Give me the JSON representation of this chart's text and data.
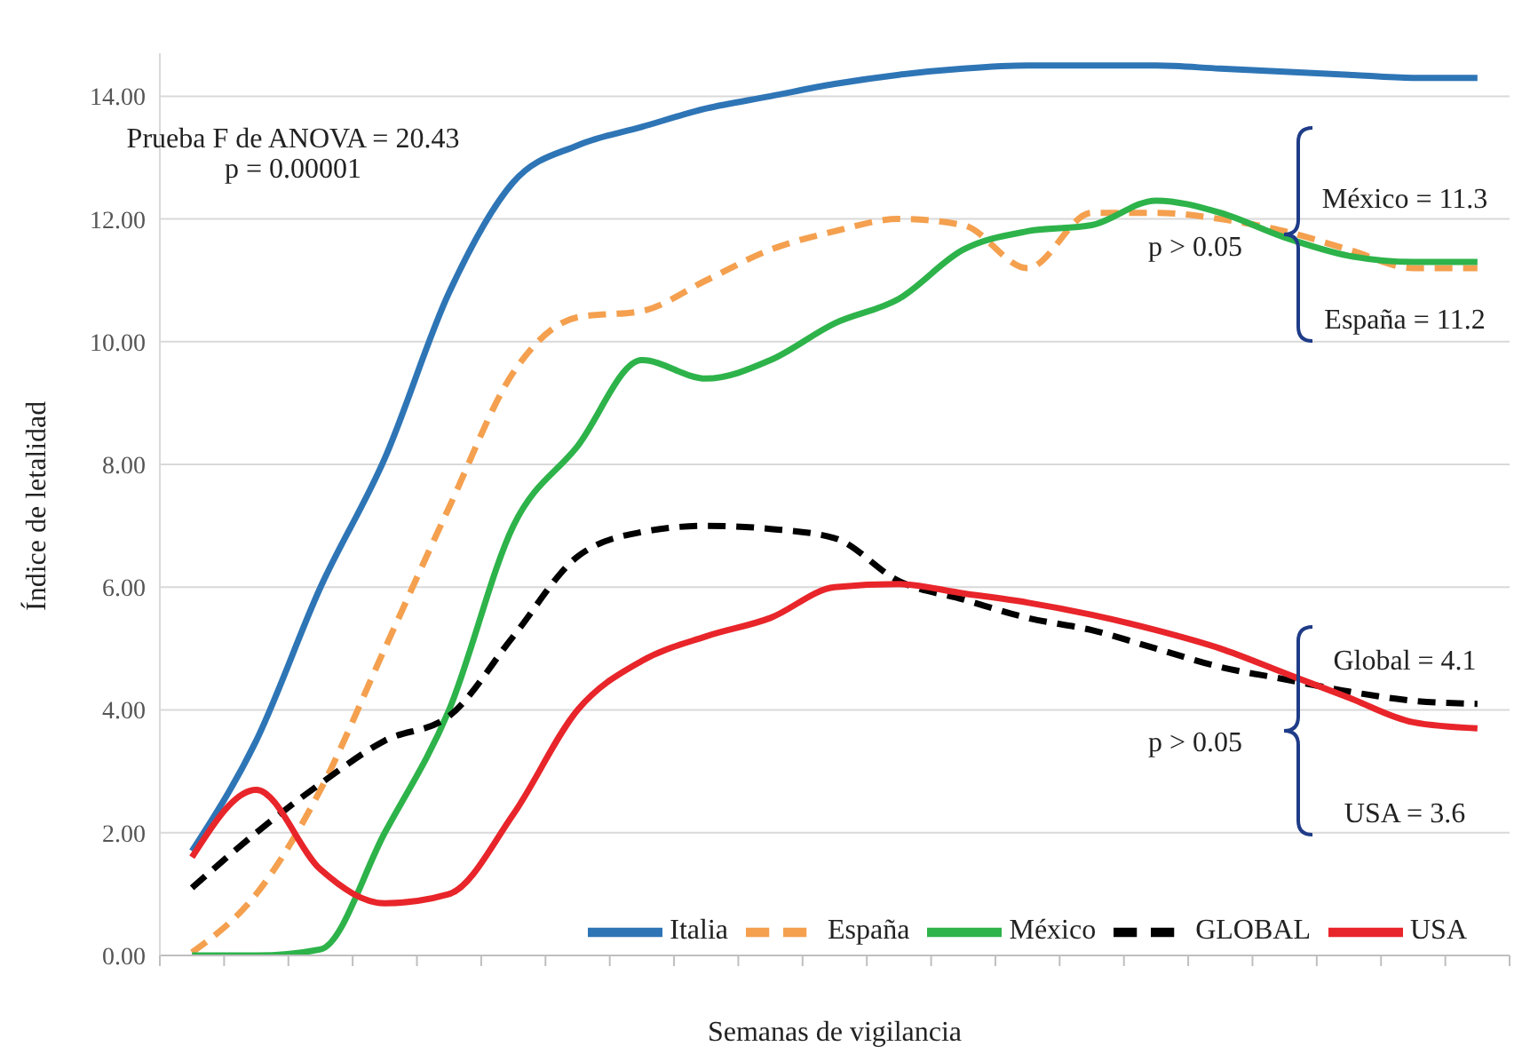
{
  "chart_data": {
    "type": "line",
    "xlabel": "Semanas de vigilancia",
    "ylabel": "Índice de letalidad",
    "categories": [
      null,
      null,
      null,
      null,
      null,
      null,
      null,
      null,
      null,
      null,
      null,
      null,
      null,
      null,
      null,
      null,
      null,
      null,
      null,
      null,
      null
    ],
    "series": [
      {
        "name": "Italia",
        "color": "#2e75b6",
        "line_style": "solid",
        "values": [
          1.7,
          3.5,
          6.0,
          8.1,
          10.8,
          12.6,
          13.2,
          13.5,
          13.8,
          14.0,
          14.2,
          14.35,
          14.45,
          14.5,
          14.5,
          14.5,
          14.45,
          14.4,
          14.35,
          14.3,
          14.3
        ]
      },
      {
        "name": "España",
        "color": "#f4a04f",
        "line_style": "dashed",
        "values": [
          0.05,
          1.0,
          2.7,
          5.0,
          7.3,
          9.5,
          10.4,
          10.5,
          11.0,
          11.5,
          11.8,
          12.0,
          11.9,
          11.2,
          12.1,
          12.1,
          12.0,
          11.8,
          11.5,
          11.2,
          11.2
        ]
      },
      {
        "name": "México",
        "color": "#2db34a",
        "line_style": "solid",
        "values": [
          0,
          0,
          0.1,
          2.0,
          4.0,
          7.0,
          8.3,
          9.7,
          9.4,
          9.7,
          10.3,
          10.7,
          11.5,
          11.8,
          11.9,
          12.3,
          12.1,
          11.7,
          11.4,
          11.3,
          11.3
        ]
      },
      {
        "name": "GLOBAL",
        "color": "#000000",
        "line_style": "dashed",
        "values": [
          1.1,
          2.0,
          2.8,
          3.5,
          3.9,
          5.2,
          6.5,
          6.9,
          7.0,
          6.95,
          6.8,
          6.1,
          5.8,
          5.5,
          5.3,
          5.0,
          4.7,
          4.5,
          4.3,
          4.15,
          4.1
        ]
      },
      {
        "name": "USA",
        "color": "#e8252a",
        "line_style": "solid",
        "values": [
          1.6,
          2.7,
          1.4,
          0.85,
          1.0,
          2.3,
          4.0,
          4.8,
          5.2,
          5.5,
          6.0,
          6.05,
          5.9,
          5.75,
          5.55,
          5.3,
          5.0,
          4.6,
          4.2,
          3.8,
          3.7
        ]
      }
    ],
    "ylim": [
      0,
      14.7
    ],
    "yticks": [
      {
        "value": 0,
        "label": "0.00"
      },
      {
        "value": 2,
        "label": "2.00"
      },
      {
        "value": 4,
        "label": "4.00"
      },
      {
        "value": 6,
        "label": "6.00"
      },
      {
        "value": 8,
        "label": "8.00"
      },
      {
        "value": 10,
        "label": "10.00"
      },
      {
        "value": 12,
        "label": "12.00"
      },
      {
        "value": 14,
        "label": "14.00"
      }
    ],
    "grid": "y",
    "legend": "bottom right",
    "marker": "none",
    "annotations": [
      "Prueba F de ANOVA = 20.43",
      "p = 0.00001",
      "México = 11.3",
      "p > 0.05",
      "España = 11.2",
      "Global = 4.1",
      "p > 0.05",
      "USA = 3.6"
    ]
  }
}
